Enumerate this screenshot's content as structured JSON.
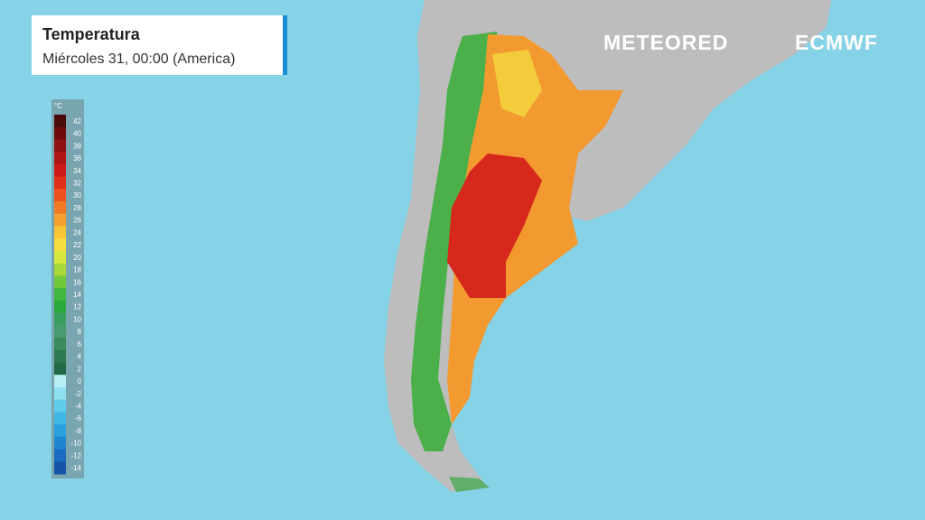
{
  "header": {
    "title": "Temperatura",
    "subtitle": "Miércoles 31, 00:00 (America)"
  },
  "legend": {
    "unit": "°C",
    "ticks": [
      42,
      40,
      38,
      36,
      34,
      32,
      30,
      28,
      26,
      24,
      22,
      20,
      18,
      16,
      14,
      12,
      10,
      8,
      6,
      4,
      2,
      0,
      -2,
      -4,
      -6,
      -8,
      -10,
      -12,
      -14
    ],
    "colors": [
      "#4a0a0a",
      "#6e0c0c",
      "#8f1010",
      "#b01515",
      "#cc1a1a",
      "#e0301a",
      "#ee5020",
      "#f27a25",
      "#f5a030",
      "#f7c535",
      "#f5e040",
      "#d8e640",
      "#a8d83a",
      "#70c83a",
      "#40b840",
      "#2aa83a",
      "#3aa060",
      "#4a9a70",
      "#3a8a5a",
      "#2e7a50",
      "#226a45",
      "#b8eef5",
      "#8fe0f0",
      "#60cdeb",
      "#40b8e5",
      "#2aa0dd",
      "#2085d0",
      "#1a6cc0",
      "#1555a8"
    ]
  },
  "logos": {
    "brand": "METEORED",
    "source": "ECMWF"
  }
}
